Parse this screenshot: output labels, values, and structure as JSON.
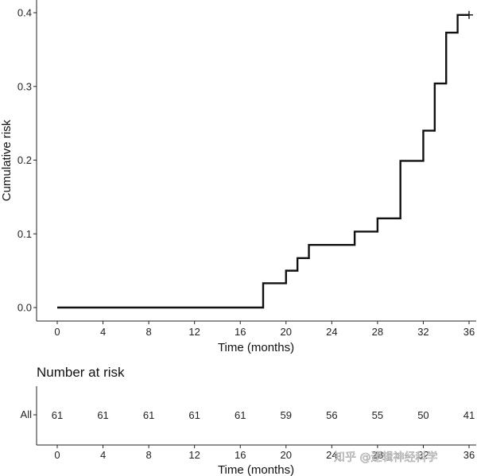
{
  "chart_data": [
    {
      "type": "line",
      "step": true,
      "xlabel": "Time (months)",
      "ylabel": "Cumulative risk",
      "xlim": [
        0,
        36
      ],
      "ylim": [
        0,
        0.4
      ],
      "x_ticks": [
        "0",
        "4",
        "8",
        "12",
        "16",
        "20",
        "24",
        "28",
        "32",
        "36"
      ],
      "y_ticks": [
        "0.0",
        "0.1",
        "0.2",
        "0.3",
        "0.4"
      ],
      "grid": false,
      "series": [
        {
          "color": "#111111",
          "x": [
            0,
            18,
            20,
            21,
            22,
            26,
            28,
            30,
            32,
            33,
            34,
            35,
            36
          ],
          "y": [
            0,
            0.033,
            0.05,
            0.067,
            0.085,
            0.103,
            0.121,
            0.199,
            0.24,
            0.304,
            0.373,
            0.397,
            0.397
          ]
        }
      ],
      "censor": {
        "x": 36,
        "y": 0.397
      }
    },
    {
      "type": "table",
      "title": "Number at risk",
      "xlabel": "Time (months)",
      "row_label": "All",
      "x_ticks": [
        "0",
        "4",
        "8",
        "12",
        "16",
        "20",
        "24",
        "28",
        "32",
        "36"
      ],
      "values": [
        61,
        61,
        61,
        61,
        61,
        59,
        56,
        55,
        50,
        41
      ]
    }
  ],
  "watermark": "知乎 @逻辑神经科学"
}
